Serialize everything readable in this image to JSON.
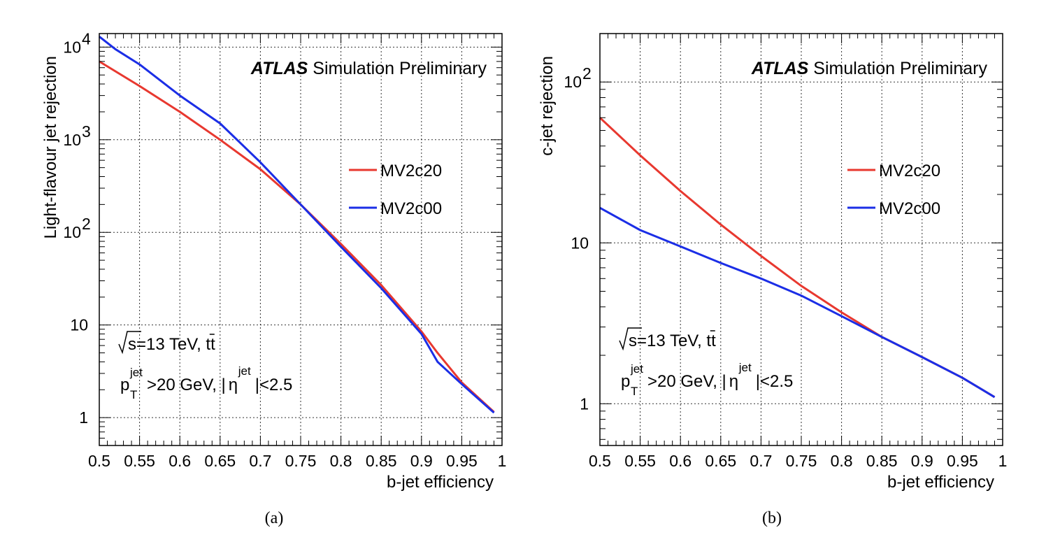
{
  "chart_data": [
    {
      "type": "line",
      "panel_label": "(a)",
      "title": "",
      "xlabel": "b-jet efficiency",
      "ylabel": "Light-flavour jet rejection",
      "xlim": [
        0.5,
        1.0
      ],
      "ylim": [
        0.5,
        14000
      ],
      "yscale": "log",
      "grid": true,
      "legend_position": "right-middle",
      "x_ticks": [
        "0.5",
        "0.55",
        "0.6",
        "0.65",
        "0.7",
        "0.75",
        "0.8",
        "0.85",
        "0.9",
        "0.95",
        "1"
      ],
      "y_ticks": [
        {
          "value": 1,
          "base": "1",
          "exp": ""
        },
        {
          "value": 10,
          "base": "10",
          "exp": ""
        },
        {
          "value": 100,
          "base": "10",
          "exp": "2"
        },
        {
          "value": 1000,
          "base": "10",
          "exp": "3"
        },
        {
          "value": 10000,
          "base": "10",
          "exp": "4"
        }
      ],
      "atlas_label": {
        "bold": "ATLAS",
        "rest": "Simulation Preliminary"
      },
      "info": {
        "line1": "s=13 TeV, t",
        "line1_bar": "t",
        "p": "p",
        "p_sup": "jet",
        "p_sub": "T",
        "line2_mid": ">20 GeV, |",
        "eta": "η",
        "eta_sup": "jet",
        "line2_end": "|<2.5"
      },
      "series": [
        {
          "name": "MV2c20",
          "color": "#e8382f",
          "x": [
            0.5,
            0.55,
            0.6,
            0.65,
            0.7,
            0.75,
            0.8,
            0.85,
            0.9,
            0.92,
            0.95,
            0.99
          ],
          "y": [
            7000,
            3800,
            2000,
            1000,
            480,
            200,
            75,
            27,
            8.5,
            5.0,
            2.4,
            1.15
          ]
        },
        {
          "name": "MV2c00",
          "color": "#1b2ee6",
          "x": [
            0.5,
            0.52,
            0.55,
            0.6,
            0.65,
            0.7,
            0.75,
            0.8,
            0.85,
            0.9,
            0.92,
            0.95,
            0.99
          ],
          "y": [
            13000,
            9500,
            6500,
            3000,
            1500,
            570,
            200,
            70,
            25,
            8.0,
            4.0,
            2.3,
            1.13
          ]
        }
      ]
    },
    {
      "type": "line",
      "panel_label": "(b)",
      "title": "",
      "xlabel": "b-jet efficiency",
      "ylabel": "c-jet rejection",
      "xlim": [
        0.5,
        1.0
      ],
      "ylim": [
        0.55,
        200
      ],
      "yscale": "log",
      "grid": true,
      "legend_position": "right-middle",
      "x_ticks": [
        "0.5",
        "0.55",
        "0.6",
        "0.65",
        "0.7",
        "0.75",
        "0.8",
        "0.85",
        "0.9",
        "0.95",
        "1"
      ],
      "y_ticks": [
        {
          "value": 1,
          "base": "1",
          "exp": ""
        },
        {
          "value": 10,
          "base": "10",
          "exp": ""
        },
        {
          "value": 100,
          "base": "10",
          "exp": "2"
        }
      ],
      "atlas_label": {
        "bold": "ATLAS",
        "rest": "Simulation Preliminary"
      },
      "info": {
        "line1": "s=13 TeV, t",
        "line1_bar": "t",
        "p": "p",
        "p_sup": "jet",
        "p_sub": "T",
        "line2_mid": ">20 GeV, |",
        "eta": "η",
        "eta_sup": "jet",
        "line2_end": "|<2.5"
      },
      "series": [
        {
          "name": "MV2c20",
          "color": "#e8382f",
          "x": [
            0.5,
            0.55,
            0.6,
            0.65,
            0.7,
            0.75,
            0.8,
            0.85,
            0.9,
            0.95,
            0.99
          ],
          "y": [
            60,
            35,
            21,
            13,
            8.3,
            5.4,
            3.7,
            2.6,
            1.95,
            1.45,
            1.1
          ]
        },
        {
          "name": "MV2c00",
          "color": "#1b2ee6",
          "x": [
            0.5,
            0.55,
            0.6,
            0.65,
            0.7,
            0.75,
            0.8,
            0.85,
            0.9,
            0.95,
            0.99
          ],
          "y": [
            16.5,
            12,
            9.5,
            7.5,
            6.0,
            4.7,
            3.5,
            2.6,
            1.95,
            1.45,
            1.1
          ]
        }
      ]
    }
  ]
}
